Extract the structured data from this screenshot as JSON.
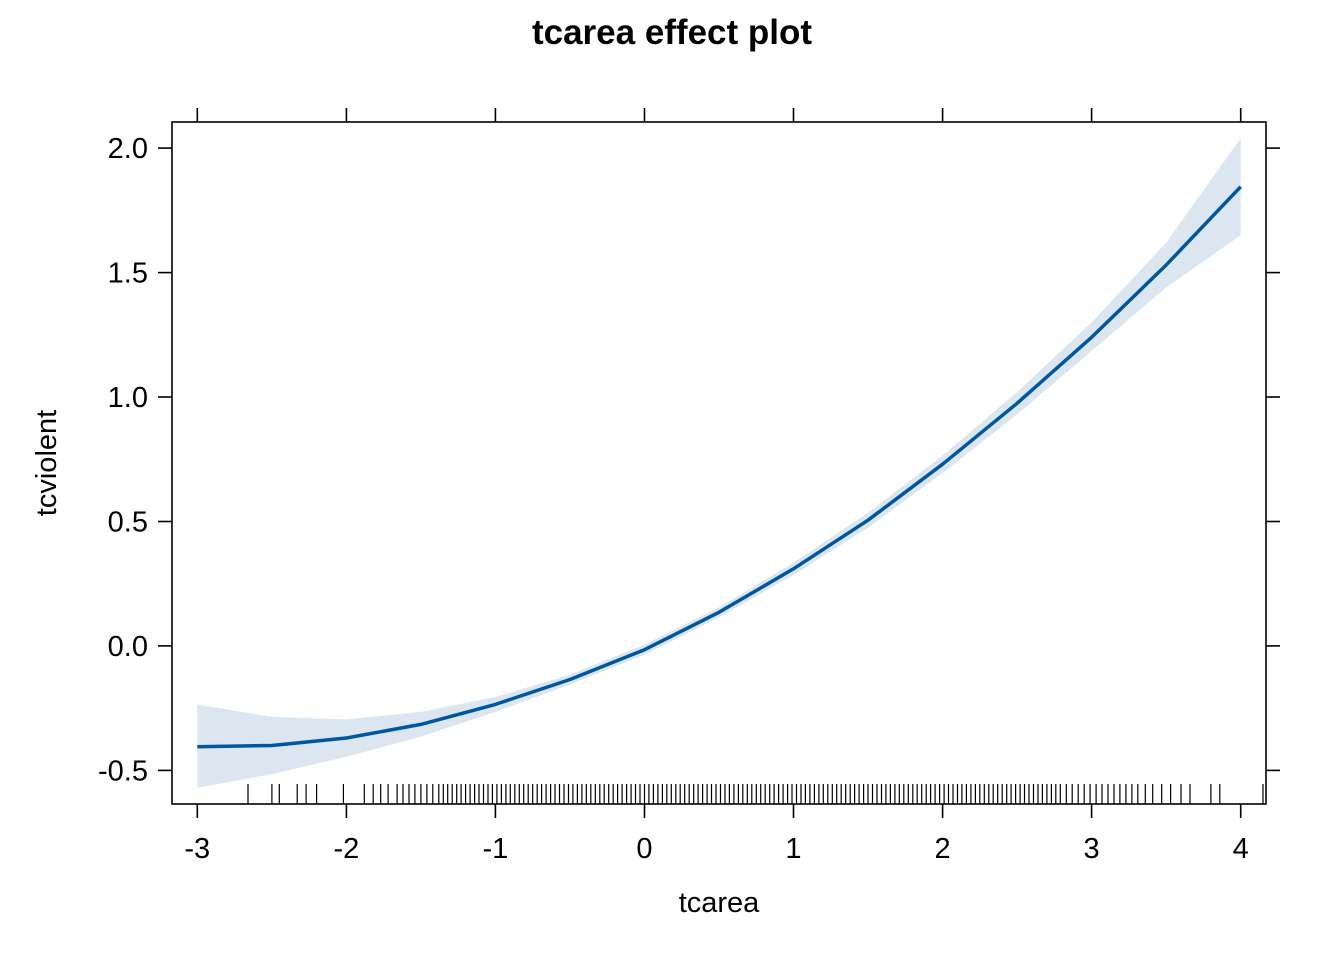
{
  "chart_data": {
    "type": "line",
    "title": "tcarea effect plot",
    "xlabel": "tcarea",
    "ylabel": "tcviolent",
    "xlim": [
      -3.17,
      4.17
    ],
    "ylim": [
      -0.635,
      2.105
    ],
    "x_ticks": [
      "-3",
      "-2",
      "-1",
      "0",
      "1",
      "2",
      "3",
      "4"
    ],
    "x_tick_values": [
      -3,
      -2,
      -1,
      0,
      1,
      2,
      3,
      4
    ],
    "y_ticks": [
      "-0.5",
      "0.0",
      "0.5",
      "1.0",
      "1.5",
      "2.0"
    ],
    "y_tick_values": [
      -0.5,
      0.0,
      0.5,
      1.0,
      1.5,
      2.0
    ],
    "grid": false,
    "line_color": "#0057a0",
    "band_color": "#dbe6f1",
    "series": [
      {
        "x": [
          -3,
          -2.5,
          -2,
          -1.5,
          -1,
          -0.5,
          0,
          0.5,
          1,
          1.5,
          2,
          2.5,
          3,
          3.5,
          4
        ],
        "values": [
          -0.405,
          -0.4,
          -0.37,
          -0.315,
          -0.235,
          -0.135,
          -0.015,
          0.135,
          0.31,
          0.505,
          0.73,
          0.975,
          1.24,
          1.53,
          1.845
        ],
        "lower": [
          -0.57,
          -0.515,
          -0.445,
          -0.365,
          -0.265,
          -0.155,
          -0.035,
          0.115,
          0.285,
          0.475,
          0.695,
          0.93,
          1.185,
          1.44,
          1.65
        ],
        "upper": [
          -0.235,
          -0.285,
          -0.295,
          -0.265,
          -0.205,
          -0.115,
          0.005,
          0.155,
          0.335,
          0.535,
          0.765,
          1.02,
          1.3,
          1.62,
          2.04
        ]
      }
    ],
    "rug": [
      -2.66,
      -2.5,
      -2.45,
      -2.33,
      -2.27,
      -2.2,
      -2.02,
      -1.88,
      -1.82,
      -1.77,
      -1.72,
      -1.66,
      -1.62,
      -1.58,
      -1.54,
      -1.5,
      -1.46,
      -1.42,
      -1.38,
      -1.35,
      -1.32,
      -1.29,
      -1.26,
      -1.23,
      -1.2,
      -1.17,
      -1.14,
      -1.11,
      -1.08,
      -1.05,
      -1.02,
      -0.99,
      -0.96,
      -0.93,
      -0.9,
      -0.87,
      -0.84,
      -0.81,
      -0.78,
      -0.75,
      -0.72,
      -0.69,
      -0.66,
      -0.63,
      -0.6,
      -0.57,
      -0.54,
      -0.51,
      -0.48,
      -0.45,
      -0.42,
      -0.39,
      -0.36,
      -0.33,
      -0.3,
      -0.27,
      -0.24,
      -0.21,
      -0.18,
      -0.15,
      -0.12,
      -0.09,
      -0.06,
      -0.03,
      0,
      0.03,
      0.06,
      0.09,
      0.12,
      0.15,
      0.18,
      0.21,
      0.24,
      0.27,
      0.3,
      0.33,
      0.36,
      0.39,
      0.42,
      0.45,
      0.48,
      0.51,
      0.54,
      0.57,
      0.6,
      0.63,
      0.66,
      0.69,
      0.72,
      0.75,
      0.78,
      0.81,
      0.84,
      0.87,
      0.9,
      0.93,
      0.96,
      0.99,
      1.02,
      1.05,
      1.08,
      1.11,
      1.14,
      1.17,
      1.2,
      1.23,
      1.26,
      1.29,
      1.32,
      1.35,
      1.38,
      1.41,
      1.44,
      1.47,
      1.5,
      1.53,
      1.56,
      1.59,
      1.62,
      1.65,
      1.68,
      1.71,
      1.74,
      1.77,
      1.8,
      1.83,
      1.86,
      1.89,
      1.92,
      1.95,
      1.98,
      2.01,
      2.04,
      2.07,
      2.1,
      2.13,
      2.16,
      2.19,
      2.22,
      2.25,
      2.28,
      2.31,
      2.34,
      2.37,
      2.4,
      2.43,
      2.46,
      2.49,
      2.52,
      2.55,
      2.58,
      2.61,
      2.64,
      2.67,
      2.7,
      2.73,
      2.76,
      2.79,
      2.83,
      2.87,
      2.91,
      2.95,
      2.99,
      3.03,
      3.07,
      3.11,
      3.15,
      3.19,
      3.23,
      3.27,
      3.31,
      3.36,
      3.41,
      3.47,
      3.53,
      3.6,
      3.66,
      3.8,
      3.86,
      4.15
    ]
  }
}
